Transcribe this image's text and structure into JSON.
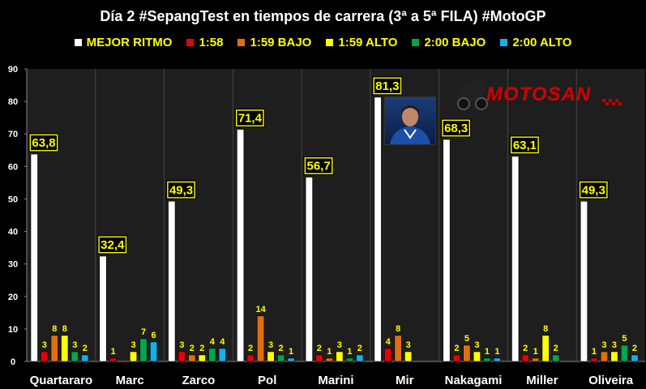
{
  "title": "Día 2 #SepangTest en tiempos de carrera (3ª a 5ª FILA) #MotoGP",
  "logo_text": "MOTOSAN",
  "logo_suffix": ".es",
  "colors": {
    "mejor_ritmo": "#ffffff",
    "1_58": "#e8000b",
    "1_59_bajo": "#e0700f",
    "1_59_alto": "#ffff00",
    "2_00_bajo": "#00a64a",
    "2_00_alto": "#14b0e8",
    "background": "#000000",
    "plot_bg": "#1e1e1e",
    "label_box_border": "#000000"
  },
  "chart_data": {
    "type": "bar",
    "title": "Día 2 #SepangTest en tiempos de carrera (3ª a 5ª FILA) #MotoGP",
    "categories": [
      "Quartararo",
      "Marc",
      "Zarco",
      "Pol",
      "Marini",
      "Mir",
      "Nakagami",
      "Miller",
      "Oliveira"
    ],
    "ylim": [
      0,
      90
    ],
    "yticks": [
      0,
      10,
      20,
      30,
      40,
      50,
      60,
      70,
      80,
      90
    ],
    "grid": false,
    "legend_position": "top",
    "series": [
      {
        "name": "MEJOR RITMO",
        "color": "#ffffff",
        "values": [
          63.8,
          32.4,
          49.3,
          71.4,
          56.7,
          81.3,
          68.3,
          63.1,
          49.3
        ],
        "labels": [
          "63,8",
          "32,4",
          "49,3",
          "71,4",
          "56,7",
          "81,3",
          "68,3",
          "63,1",
          "49,3"
        ]
      },
      {
        "name": "1:58",
        "color": "#e8000b",
        "values": [
          3,
          1,
          3,
          2,
          2,
          4,
          2,
          2,
          1
        ]
      },
      {
        "name": "1:59 BAJO",
        "color": "#e0700f",
        "values": [
          8,
          0,
          2,
          14,
          1,
          8,
          5,
          1,
          3
        ]
      },
      {
        "name": "1:59 ALTO",
        "color": "#ffff00",
        "values": [
          8,
          3,
          2,
          3,
          3,
          3,
          3,
          8,
          3
        ]
      },
      {
        "name": "2:00 BAJO",
        "color": "#00a64a",
        "values": [
          3,
          7,
          4,
          2,
          1,
          0,
          1,
          2,
          5
        ]
      },
      {
        "name": "2:00 ALTO",
        "color": "#14b0e8",
        "values": [
          2,
          6,
          4,
          1,
          2,
          0,
          1,
          0,
          2
        ]
      }
    ]
  }
}
